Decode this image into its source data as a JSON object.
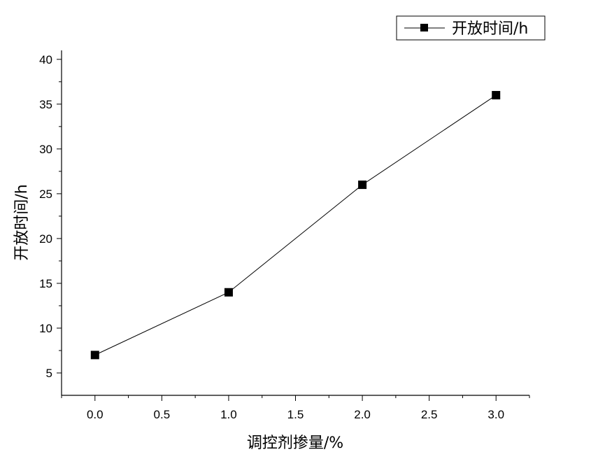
{
  "chart_data": {
    "type": "line",
    "xlabel": "调控剂掺量/%",
    "ylabel": "开放时间/h",
    "x": [
      0.0,
      1.0,
      2.0,
      3.0
    ],
    "series": [
      {
        "name": "开放时间/h",
        "values": [
          7,
          14,
          26,
          36
        ],
        "color": "#000000",
        "marker": "square"
      }
    ],
    "xlim": [
      -0.25,
      3.25
    ],
    "ylim": [
      2.5,
      41
    ],
    "xticks": [
      "0.0",
      "0.5",
      "1.0",
      "1.5",
      "2.0",
      "2.5",
      "3.0"
    ],
    "yticks": [
      "5",
      "10",
      "15",
      "20",
      "25",
      "30",
      "35",
      "40"
    ],
    "grid": false,
    "legend": "top-right"
  }
}
